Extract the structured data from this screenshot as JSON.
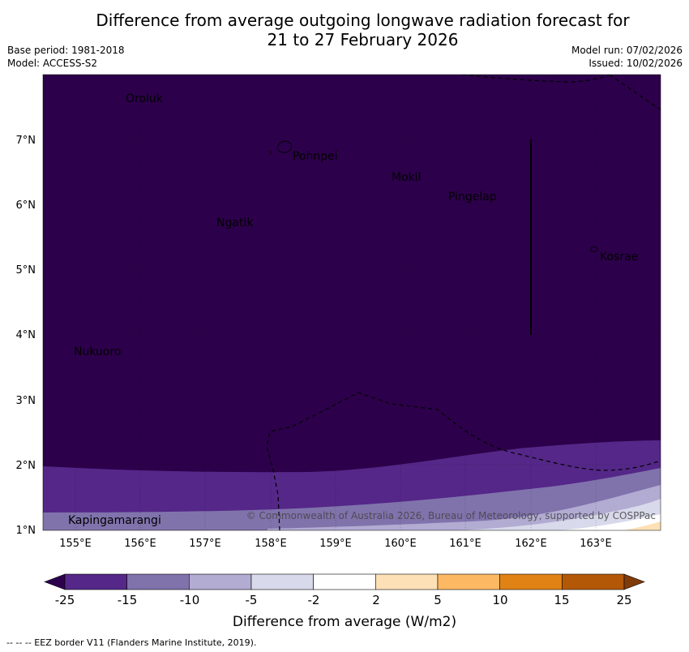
{
  "title_line1": "Difference from average outgoing longwave radiation forecast for",
  "title_line2": "21 to 27 February 2026",
  "base_period": "Base period: 1981-2018",
  "model": "Model: ACCESS-S2",
  "model_run": "Model run: 07/02/2026",
  "issued": "Issued: 10/02/2026",
  "lat_ticks": [
    "7°N",
    "6°N",
    "5°N",
    "4°N",
    "3°N",
    "2°N",
    "1°N"
  ],
  "lon_ticks": [
    "155°E",
    "156°E",
    "157°E",
    "158°E",
    "159°E",
    "160°E",
    "161°E",
    "162°E",
    "163°E"
  ],
  "places": {
    "oroluk": "Oroluk",
    "pohnpei": "Pohnpei",
    "mokil": "Mokil",
    "pingelap": "Pingelap",
    "ngatik": "Ngatik",
    "kosrae": "Kosrae",
    "nukuoro": "Nukuoro",
    "kapingamarangi": "Kapingamarangi"
  },
  "copyright": "© Commonwealth of Australia 2026, Bureau of Meteorology, supported by COSPPac",
  "colorbar": {
    "labels": [
      "-25",
      "-15",
      "-10",
      "-5",
      "-2",
      "2",
      "5",
      "10",
      "15",
      "25"
    ],
    "colors": [
      "#2d004b",
      "#542788",
      "#8073ac",
      "#b2abd2",
      "#d8daeb",
      "#ffffff",
      "#fee0b6",
      "#fdb863",
      "#e08214",
      "#b35806",
      "#7f3b08"
    ],
    "title": "Difference from average (W/m2)"
  },
  "footnote": "--  --  -- EEZ border V11 (Flanders Marine Institute, 2019)."
}
